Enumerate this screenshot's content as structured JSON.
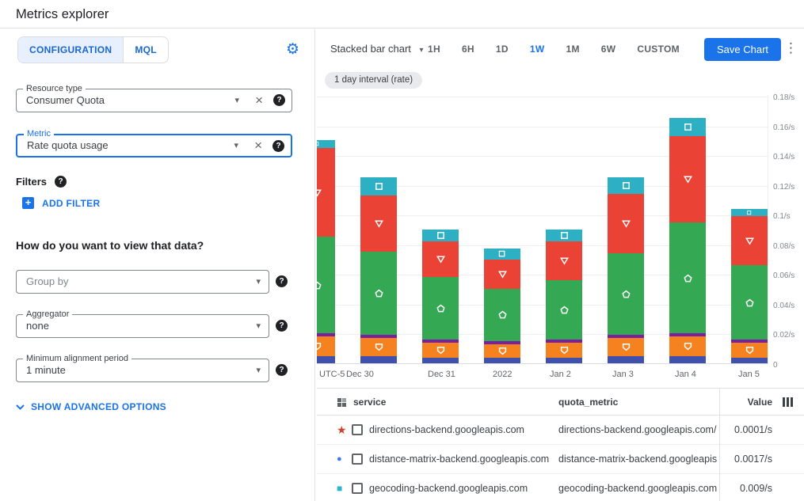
{
  "header": {
    "title": "Metrics explorer"
  },
  "config": {
    "tabs": [
      {
        "label": "CONFIGURATION",
        "active": true
      },
      {
        "label": "MQL",
        "active": false
      }
    ],
    "resource_type": {
      "label": "Resource type",
      "value": "Consumer Quota"
    },
    "metric": {
      "label": "Metric",
      "value": "Rate quota usage"
    },
    "filters_label": "Filters",
    "add_filter": "ADD FILTER",
    "view_question": "How do you want to view that data?",
    "group_by_placeholder": "Group by",
    "aggregator": {
      "label": "Aggregator",
      "value": "none"
    },
    "alignment": {
      "label": "Minimum alignment period",
      "value": "1 minute"
    },
    "advanced": "SHOW ADVANCED OPTIONS"
  },
  "toolbar": {
    "chart_type_selector": "Stacked bar chart",
    "ranges": [
      "1H",
      "6H",
      "1D",
      "1W",
      "1M",
      "6W",
      "CUSTOM"
    ],
    "active_range": "1W",
    "save_button": "Save Chart"
  },
  "interval_chip": "1 day interval (rate)",
  "chart_data": {
    "type": "bar",
    "stacked": true,
    "title": "",
    "xlabel": "",
    "ylabel": "",
    "ylim": [
      0,
      0.18
    ],
    "grid": true,
    "xticklabels": [
      "UTC-5",
      "Dec 30",
      "Dec 31",
      "2022",
      "Jan 2",
      "Jan 3",
      "Jan 4",
      "Jan 5"
    ],
    "yticks": [
      {
        "v": 0.18,
        "label": "0.18/s"
      },
      {
        "v": 0.16,
        "label": "0.16/s"
      },
      {
        "v": 0.14,
        "label": "0.14/s"
      },
      {
        "v": 0.12,
        "label": "0.12/s"
      },
      {
        "v": 0.1,
        "label": "0.1/s"
      },
      {
        "v": 0.08,
        "label": "0.08/s"
      },
      {
        "v": 0.06,
        "label": "0.06/s"
      },
      {
        "v": 0.04,
        "label": "0.04/s"
      },
      {
        "v": 0.02,
        "label": "0.02/s"
      },
      {
        "v": 0,
        "label": "0"
      }
    ],
    "series": [
      {
        "name": "dark-blue",
        "color": "#3f51ad",
        "marker": null,
        "values": [
          0.005,
          0.005,
          0.004,
          0.004,
          0.004,
          0.005,
          0.005,
          0.004
        ]
      },
      {
        "name": "orange",
        "color": "#f5821f",
        "marker": "shield-down",
        "values": [
          0.013,
          0.012,
          0.01,
          0.009,
          0.01,
          0.012,
          0.013,
          0.01
        ]
      },
      {
        "name": "purple",
        "color": "#7b1fa2",
        "marker": null,
        "values": [
          0.002,
          0.002,
          0.002,
          0.002,
          0.002,
          0.002,
          0.002,
          0.002
        ]
      },
      {
        "name": "green",
        "color": "#34a853",
        "marker": "pentagon-up",
        "values": [
          0.065,
          0.056,
          0.042,
          0.035,
          0.04,
          0.055,
          0.075,
          0.05
        ]
      },
      {
        "name": "red",
        "color": "#ea4335",
        "marker": "triangle-down",
        "values": [
          0.06,
          0.038,
          0.024,
          0.02,
          0.026,
          0.04,
          0.058,
          0.033
        ]
      },
      {
        "name": "teal",
        "color": "#2eb0c4",
        "marker": "square",
        "values": [
          0.005,
          0.012,
          0.008,
          0.007,
          0.008,
          0.011,
          0.012,
          0.005
        ]
      }
    ]
  },
  "table": {
    "columns": {
      "service": "service",
      "quota_metric": "quota_metric",
      "value": "Value"
    },
    "rows": [
      {
        "marker": "star",
        "marker_color": "#d23f31",
        "service": "directions-backend.googleapis.com",
        "quota_metric": "directions-backend.googleapis.com/billabl",
        "value": "0.0001/s"
      },
      {
        "marker": "circle",
        "marker_color": "#3b78e7",
        "service": "distance-matrix-backend.googleapis.com",
        "quota_metric": "distance-matrix-backend.googleapis.com/b",
        "value": "0.0017/s"
      },
      {
        "marker": "square",
        "marker_color": "#29b6c8",
        "service": "geocoding-backend.googleapis.com",
        "quota_metric": "geocoding-backend.googleapis.com/billab",
        "value": "0.009/s"
      }
    ]
  }
}
